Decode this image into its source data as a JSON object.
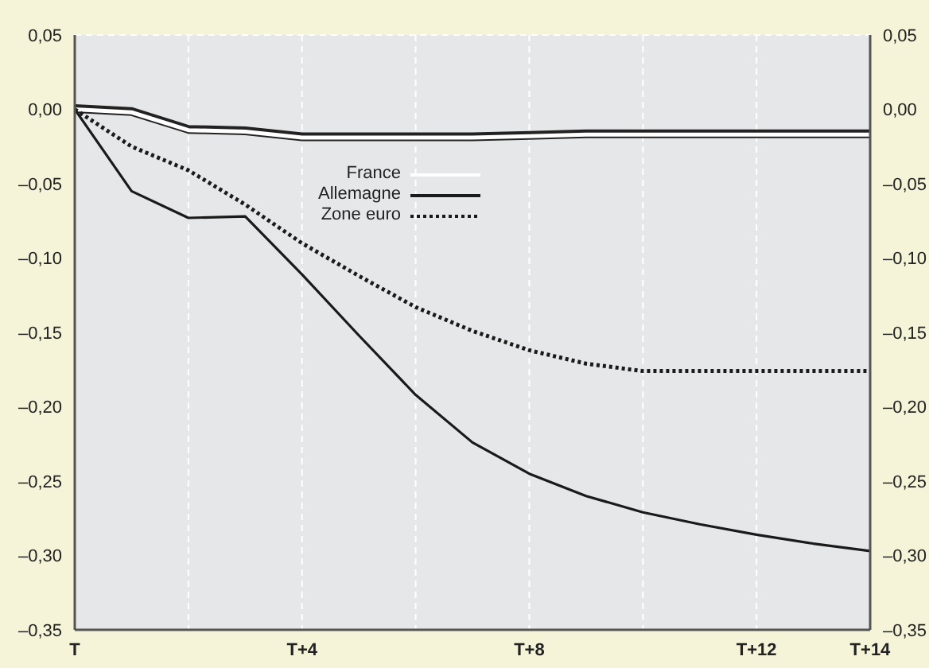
{
  "chart_data": {
    "type": "line",
    "categories": [
      "T",
      null,
      null,
      null,
      "T+4",
      null,
      null,
      null,
      "T+8",
      null,
      null,
      null,
      "T+12",
      null,
      "T+14"
    ],
    "series": [
      {
        "name": "France",
        "color": "#ffffff",
        "line_style": "solid",
        "values": [
          0,
          -0.002,
          -0.014,
          -0.015,
          -0.019,
          -0.019,
          -0.019,
          -0.019,
          -0.018,
          -0.017,
          -0.017,
          -0.017,
          -0.017,
          -0.017,
          -0.017
        ]
      },
      {
        "name": "Allemagne",
        "color": "#1a1a1a",
        "line_style": "solid",
        "values": [
          0,
          -0.055,
          -0.073,
          -0.072,
          -0.111,
          -0.152,
          -0.192,
          -0.224,
          -0.245,
          -0.26,
          -0.271,
          -0.279,
          -0.286,
          -0.292,
          -0.297
        ]
      },
      {
        "name": "Zone euro",
        "color": "#1a1a1a",
        "line_style": "dotted",
        "values": [
          0,
          -0.025,
          -0.041,
          -0.064,
          -0.09,
          -0.112,
          -0.133,
          -0.149,
          -0.162,
          -0.171,
          -0.176,
          -0.176,
          -0.176,
          -0.176,
          -0.176
        ]
      }
    ],
    "ylim": [
      -0.35,
      0.05
    ],
    "yticks": [
      {
        "value": -0.35,
        "label": "–0,35"
      },
      {
        "value": -0.3,
        "label": "–0,30"
      },
      {
        "value": -0.25,
        "label": "–0,25"
      },
      {
        "value": -0.2,
        "label": "–0,20"
      },
      {
        "value": -0.15,
        "label": "–0,15"
      },
      {
        "value": -0.1,
        "label": "–0,10"
      },
      {
        "value": -0.05,
        "label": "–0,05"
      },
      {
        "value": 0,
        "label": "0,00"
      },
      {
        "value": 0.05,
        "label": "0,05"
      }
    ],
    "y2lim": [
      -0.35,
      0.05
    ],
    "y2ticks": [
      {
        "value": -0.35,
        "label": "–0,35"
      },
      {
        "value": -0.3,
        "label": "–0,30"
      },
      {
        "value": -0.25,
        "label": "–0,25"
      },
      {
        "value": -0.2,
        "label": "–0,20"
      },
      {
        "value": -0.15,
        "label": "–0,15"
      },
      {
        "value": -0.1,
        "label": "–0,10"
      },
      {
        "value": -0.05,
        "label": "–0,05"
      },
      {
        "value": 0,
        "label": "0,00"
      },
      {
        "value": 0.05,
        "label": "0,05"
      }
    ],
    "grid": true,
    "legend": "top",
    "marker": "none"
  }
}
